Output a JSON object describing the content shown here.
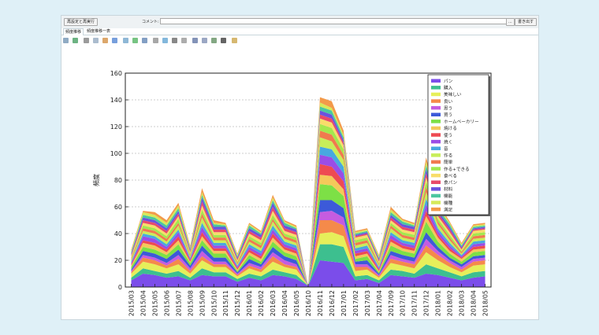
{
  "toolbar": {
    "rerun_label": "再設定と再実行",
    "comment_label": "コメント:",
    "comment_value": "",
    "more_label": "...",
    "export_label": "書き出す"
  },
  "tabs": [
    {
      "label": "頻度推移",
      "active": true
    },
    {
      "label": "頻度推移一表",
      "active": false
    }
  ],
  "icons": [
    "save-icon",
    "refresh-icon",
    "zoom-icon",
    "copy-icon",
    "home-icon",
    "cursor-icon",
    "zoom-in-icon",
    "zoom-out-icon",
    "table-icon",
    "chart-icon",
    "grid-icon",
    "font-icon",
    "font-small-icon",
    "line-chart-icon",
    "bar-chart-icon",
    "area-chart-icon",
    "color-icon",
    "settings-icon"
  ],
  "colors": {
    "window_bg": "#ffffff",
    "page_bg": "#dff0f7",
    "toolbar_bg": "#eef2f4"
  },
  "chart_data": {
    "type": "area",
    "stacked": true,
    "title": "",
    "xlabel": "",
    "ylabel": "頻度",
    "ylim": [
      0,
      160
    ],
    "yticks": [
      "0",
      "20",
      "40",
      "60",
      "80",
      "100",
      "120",
      "140",
      "160"
    ],
    "grid": true,
    "legend_position": "top-right",
    "categories": [
      "2015/03",
      "2015/04",
      "2015/05",
      "2015/06",
      "2015/07",
      "2015/08",
      "2015/09",
      "2015/10",
      "2015/11",
      "2015/12",
      "2016/01",
      "2016/02",
      "2016/03",
      "2016/04",
      "2016/05",
      "2016/10",
      "2016/11",
      "2016/12",
      "2017/01",
      "2017/02",
      "2017/03",
      "2017/04",
      "2017/09",
      "2017/10",
      "2017/11",
      "2017/12",
      "2018/01",
      "2018/02",
      "2018/03",
      "2018/04",
      "2018/05"
    ],
    "series": [
      {
        "name": "パン",
        "color": "#7b4dea",
        "values": [
          5,
          10,
          9,
          7,
          8,
          5,
          9,
          8,
          8,
          4,
          7,
          5,
          9,
          8,
          6,
          1,
          20,
          19,
          18,
          5,
          6,
          3,
          9,
          8,
          7,
          10,
          9,
          7,
          5,
          7,
          8
        ]
      },
      {
        "name": "購入",
        "color": "#3dbf8f",
        "values": [
          2,
          4,
          3,
          3,
          4,
          2,
          5,
          3,
          3,
          2,
          3,
          3,
          4,
          3,
          3,
          0,
          12,
          13,
          12,
          3,
          3,
          2,
          4,
          4,
          3,
          7,
          5,
          4,
          3,
          4,
          4
        ]
      },
      {
        "name": "美味しい",
        "color": "#e6ef5a",
        "values": [
          3,
          5,
          5,
          4,
          5,
          3,
          6,
          4,
          4,
          2,
          4,
          3,
          6,
          4,
          4,
          0,
          8,
          9,
          8,
          4,
          4,
          2,
          5,
          4,
          4,
          9,
          6,
          4,
          3,
          5,
          5
        ]
      },
      {
        "name": "良い",
        "color": "#f58a4a",
        "values": [
          1,
          3,
          3,
          2,
          4,
          2,
          3,
          2,
          2,
          1,
          2,
          2,
          4,
          2,
          2,
          0,
          10,
          9,
          8,
          3,
          2,
          1,
          3,
          3,
          3,
          5,
          4,
          3,
          2,
          3,
          3
        ]
      },
      {
        "name": "思う",
        "color": "#c55ce0",
        "values": [
          1,
          2,
          2,
          2,
          3,
          2,
          4,
          2,
          2,
          1,
          2,
          2,
          3,
          3,
          2,
          0,
          6,
          7,
          6,
          2,
          2,
          1,
          3,
          2,
          2,
          5,
          3,
          2,
          2,
          2,
          2
        ]
      },
      {
        "name": "買う",
        "color": "#3c5ad9",
        "values": [
          1,
          3,
          3,
          3,
          4,
          2,
          4,
          3,
          3,
          1,
          3,
          2,
          4,
          3,
          3,
          0,
          9,
          8,
          7,
          2,
          3,
          1,
          3,
          3,
          3,
          5,
          3,
          2,
          2,
          2,
          2
        ]
      },
      {
        "name": "ホームベーカリー",
        "color": "#7de046",
        "values": [
          2,
          3,
          3,
          3,
          4,
          2,
          4,
          3,
          3,
          1,
          3,
          2,
          4,
          3,
          3,
          0,
          12,
          11,
          9,
          2,
          3,
          1,
          4,
          3,
          3,
          8,
          4,
          3,
          2,
          3,
          3
        ]
      },
      {
        "name": "焼ける",
        "color": "#f4c95a",
        "values": [
          1,
          3,
          3,
          2,
          3,
          1,
          3,
          2,
          2,
          1,
          2,
          2,
          3,
          2,
          2,
          0,
          7,
          7,
          5,
          2,
          2,
          1,
          3,
          2,
          2,
          4,
          3,
          2,
          2,
          2,
          2
        ]
      },
      {
        "name": "使う",
        "color": "#ee4a52",
        "values": [
          1,
          2,
          2,
          2,
          3,
          1,
          3,
          2,
          2,
          1,
          2,
          2,
          3,
          2,
          2,
          0,
          8,
          7,
          6,
          2,
          2,
          1,
          2,
          2,
          2,
          4,
          2,
          2,
          1,
          2,
          2
        ]
      },
      {
        "name": "焼く",
        "color": "#9a4de6",
        "values": [
          1,
          3,
          3,
          2,
          3,
          1,
          4,
          2,
          2,
          1,
          2,
          2,
          3,
          2,
          2,
          0,
          7,
          7,
          6,
          2,
          2,
          1,
          3,
          2,
          2,
          5,
          3,
          2,
          1,
          2,
          2
        ]
      },
      {
        "name": "音",
        "color": "#48a8e0",
        "values": [
          1,
          2,
          2,
          2,
          2,
          1,
          3,
          2,
          2,
          1,
          2,
          2,
          3,
          2,
          2,
          0,
          6,
          6,
          5,
          2,
          2,
          1,
          2,
          2,
          2,
          4,
          2,
          2,
          1,
          2,
          2
        ]
      },
      {
        "name": "作る",
        "color": "#c8ee5a",
        "values": [
          1,
          2,
          2,
          2,
          3,
          1,
          4,
          2,
          2,
          1,
          2,
          2,
          3,
          2,
          2,
          0,
          7,
          6,
          5,
          2,
          2,
          1,
          3,
          2,
          2,
          5,
          3,
          2,
          1,
          2,
          2
        ]
      },
      {
        "name": "簡単",
        "color": "#f07a4e",
        "values": [
          1,
          2,
          2,
          2,
          2,
          1,
          3,
          2,
          2,
          1,
          2,
          2,
          2,
          2,
          2,
          0,
          5,
          5,
          4,
          2,
          2,
          1,
          2,
          2,
          2,
          4,
          2,
          2,
          1,
          2,
          2
        ]
      },
      {
        "name": "作る+できる",
        "color": "#a3e84e",
        "values": [
          1,
          2,
          2,
          2,
          3,
          1,
          3,
          2,
          2,
          1,
          2,
          2,
          3,
          2,
          2,
          0,
          5,
          5,
          4,
          2,
          2,
          1,
          2,
          2,
          2,
          4,
          2,
          2,
          1,
          2,
          2
        ]
      },
      {
        "name": "食べる",
        "color": "#f8dd6a",
        "values": [
          1,
          2,
          2,
          2,
          2,
          1,
          3,
          2,
          2,
          1,
          2,
          2,
          3,
          2,
          2,
          0,
          4,
          4,
          3,
          2,
          2,
          1,
          2,
          2,
          2,
          3,
          2,
          2,
          1,
          2,
          2
        ]
      },
      {
        "name": "食パン",
        "color": "#e84a6a",
        "values": [
          1,
          2,
          2,
          2,
          2,
          1,
          3,
          2,
          2,
          1,
          2,
          2,
          3,
          2,
          2,
          0,
          3,
          3,
          2,
          1,
          1,
          1,
          2,
          2,
          2,
          3,
          2,
          2,
          1,
          1,
          1
        ]
      },
      {
        "name": "材料",
        "color": "#6a52de",
        "values": [
          1,
          2,
          2,
          2,
          2,
          1,
          3,
          2,
          2,
          1,
          2,
          2,
          3,
          2,
          2,
          0,
          3,
          3,
          2,
          1,
          1,
          1,
          2,
          2,
          2,
          3,
          2,
          2,
          1,
          1,
          1
        ]
      },
      {
        "name": "機能",
        "color": "#4bc7a0",
        "values": [
          1,
          2,
          2,
          2,
          2,
          1,
          2,
          2,
          1,
          1,
          2,
          1,
          2,
          2,
          1,
          0,
          3,
          3,
          2,
          1,
          1,
          1,
          2,
          2,
          1,
          3,
          2,
          2,
          1,
          1,
          1
        ]
      },
      {
        "name": "機種",
        "color": "#d6ea5a",
        "values": [
          1,
          2,
          2,
          2,
          2,
          1,
          2,
          1,
          1,
          1,
          1,
          1,
          2,
          1,
          1,
          0,
          3,
          2,
          2,
          1,
          1,
          1,
          2,
          1,
          1,
          3,
          2,
          1,
          1,
          1,
          1
        ]
      },
      {
        "name": "満足",
        "color": "#f39a4a",
        "values": [
          1,
          1,
          2,
          2,
          2,
          1,
          3,
          2,
          1,
          1,
          1,
          1,
          2,
          1,
          1,
          0,
          4,
          5,
          3,
          1,
          1,
          1,
          2,
          1,
          1,
          3,
          2,
          1,
          1,
          1,
          1
        ]
      }
    ]
  }
}
